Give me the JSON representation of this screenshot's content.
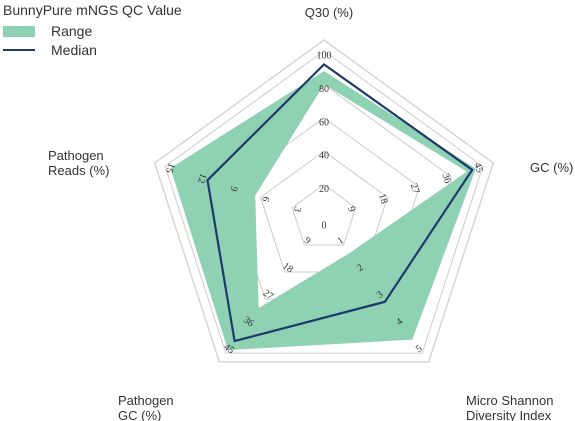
{
  "legend": {
    "title": "BunnyPure mNGS QC Value",
    "range_label": "Range",
    "median_label": "Median"
  },
  "colors": {
    "range_fill": "#8fd1b3",
    "median_line": "#1f3a68",
    "grid": "#cccccc",
    "outer_frame": "#d6d6d6"
  },
  "chart_data": {
    "type": "radar",
    "levels": 5,
    "grid": true,
    "legend_position": "top-left",
    "axes": [
      {
        "label": "Q30 (%)",
        "label_lines": [
          "Q30 (%)"
        ],
        "ticks": [
          "0",
          "20",
          "40",
          "60",
          "80",
          "100"
        ],
        "max": 100
      },
      {
        "label": "GC (%)",
        "label_lines": [
          "GC (%)"
        ],
        "ticks": [
          "0",
          "9",
          "18",
          "27",
          "36",
          "45"
        ],
        "max": 45
      },
      {
        "label": "Micro Shannon Diversity Index",
        "label_lines": [
          "Micro Shannon",
          "Diversity Index"
        ],
        "ticks": [
          "0",
          "1",
          "2",
          "3",
          "4",
          "5"
        ],
        "max": 5
      },
      {
        "label": "Pathogen GC (%)",
        "label_lines": [
          "Pathogen",
          "GC (%)"
        ],
        "ticks": [
          "0",
          "9",
          "18",
          "27",
          "36",
          "45"
        ],
        "max": 45
      },
      {
        "label": "Pathogen Reads (%)",
        "label_lines": [
          "Pathogen",
          "Reads (%)"
        ],
        "ticks": [
          "0",
          "3",
          "6",
          "9",
          "12",
          "15"
        ],
        "max": 15
      }
    ],
    "series": [
      {
        "name": "Range",
        "kind": "area",
        "max": [
          88,
          43,
          4.5,
          44,
          14.5
        ],
        "min": [
          80,
          40.5,
          1.3,
          30,
          6.5
        ]
      },
      {
        "name": "Median",
        "kind": "line",
        "values": [
          92,
          42,
          3.1,
          41,
          11
        ]
      }
    ]
  }
}
